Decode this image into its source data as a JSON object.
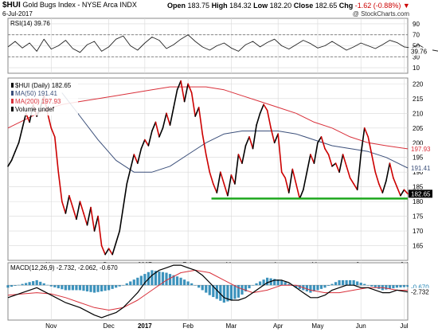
{
  "header": {
    "symbol": "$HUI",
    "name": "Gold Bugs Index - NYSE Arca INDX",
    "date": "6-Jul-2017",
    "watermark": "@ StockCharts.com",
    "quote": {
      "open_label": "Open",
      "open": "183.75",
      "high_label": "High",
      "high": "184.32",
      "low_label": "Low",
      "low": "182.20",
      "close_label": "Close",
      "close": "182.65",
      "chg_label": "Chg",
      "chg": "-1.62 (-0.88%)"
    }
  },
  "colors": {
    "price": "#000000",
    "price_down": "#cc0000",
    "ma50": "#3b4f7a",
    "ma200": "#d9303a",
    "support": "#1fa81f",
    "macd_line": "#000000",
    "signal_line": "#d9303a",
    "histogram": "#1a7fb0",
    "grid": "#d8d8d8"
  },
  "chart_data": [
    {
      "type": "line",
      "name": "rsi-panel",
      "legend": "RSI(14) 39.76",
      "ylim": [
        0,
        100
      ],
      "yticks": [
        10,
        30,
        50,
        70,
        90
      ],
      "reference_lines": [
        30,
        70
      ],
      "last_value_tag": "39.76",
      "series": [
        {
          "name": "RSI(14)",
          "x": [
            0,
            4,
            8,
            12,
            16,
            20,
            24,
            28,
            32,
            36,
            40,
            44,
            48,
            52,
            56,
            60,
            64,
            68,
            72,
            76,
            80,
            84,
            88,
            92,
            96,
            100,
            104,
            108,
            112,
            116,
            120,
            124,
            128,
            132,
            136,
            140,
            144,
            148,
            152,
            156,
            160,
            164,
            168,
            172,
            176,
            180,
            184,
            188,
            192,
            196,
            200,
            204,
            208,
            212,
            216,
            220,
            224,
            228,
            232,
            236,
            240
          ],
          "values": [
            48,
            58,
            46,
            55,
            40,
            62,
            44,
            50,
            60,
            45,
            38,
            52,
            58,
            40,
            48,
            62,
            68,
            50,
            42,
            55,
            66,
            60,
            45,
            52,
            62,
            70,
            58,
            48,
            42,
            50,
            55,
            46,
            40,
            52,
            58,
            48,
            56,
            62,
            50,
            44,
            52,
            60,
            54,
            46,
            50,
            58,
            50,
            42,
            48,
            55,
            50,
            45,
            52,
            60,
            56,
            48,
            46,
            52,
            44,
            42,
            39.76
          ]
        }
      ]
    },
    {
      "type": "line",
      "name": "price-panel",
      "legend": [
        "$HUI (Daily) 182.65",
        "MA(50) 191.41",
        "MA(200) 197.93",
        "Volume undef"
      ],
      "ylim": [
        160,
        222
      ],
      "yticks": [
        165,
        170,
        175,
        180,
        185,
        190,
        195,
        200,
        205,
        210,
        215,
        220
      ],
      "xticks": [
        {
          "x": 24,
          "label": "Nov"
        },
        {
          "x": 56,
          "label": "Dec"
        },
        {
          "x": 76,
          "label": "2017"
        },
        {
          "x": 100,
          "label": "Feb"
        },
        {
          "x": 124,
          "label": "Mar"
        },
        {
          "x": 150,
          "label": "Apr"
        },
        {
          "x": 172,
          "label": "May"
        },
        {
          "x": 196,
          "label": "Jun"
        },
        {
          "x": 220,
          "label": "Jul"
        }
      ],
      "last_value_tags": [
        "197.93",
        "191.41",
        "182.65"
      ],
      "support_level": 181,
      "support_x": [
        113,
        222
      ],
      "series": [
        {
          "name": "$HUI",
          "x": [
            0,
            2,
            4,
            6,
            8,
            10,
            12,
            14,
            16,
            18,
            20,
            22,
            24,
            26,
            28,
            30,
            32,
            34,
            36,
            38,
            40,
            42,
            44,
            46,
            48,
            50,
            52,
            54,
            56,
            58,
            60,
            62,
            64,
            66,
            68,
            70,
            72,
            74,
            76,
            78,
            80,
            82,
            84,
            86,
            88,
            90,
            92,
            94,
            96,
            98,
            100,
            102,
            104,
            106,
            108,
            110,
            112,
            114,
            116,
            118,
            120,
            122,
            124,
            126,
            128,
            130,
            132,
            134,
            136,
            138,
            140,
            142,
            144,
            146,
            148,
            150,
            152,
            154,
            156,
            158,
            160,
            162,
            164,
            166,
            168,
            170,
            172,
            174,
            176,
            178,
            180,
            182,
            184,
            186,
            188,
            190,
            192,
            194,
            196,
            198,
            200,
            202,
            204,
            206,
            208,
            210,
            212,
            214,
            216,
            218,
            220,
            222
          ],
          "values": [
            192,
            194,
            197,
            200,
            205,
            210,
            207,
            213,
            209,
            212,
            216,
            210,
            205,
            202,
            190,
            180,
            176,
            182,
            178,
            174,
            180,
            176,
            172,
            178,
            170,
            175,
            165,
            162,
            164,
            162,
            166,
            170,
            178,
            186,
            191,
            196,
            193,
            198,
            201,
            199,
            204,
            207,
            202,
            205,
            210,
            206,
            212,
            218,
            221,
            214,
            220,
            217,
            209,
            212,
            203,
            196,
            190,
            186,
            183,
            190,
            186,
            182,
            189,
            186,
            196,
            193,
            199,
            202,
            198,
            206,
            210,
            213,
            211,
            205,
            200,
            203,
            190,
            188,
            183,
            191,
            186,
            181,
            184,
            190,
            196,
            193,
            200,
            202,
            198,
            196,
            192,
            193,
            190,
            196,
            192,
            188,
            186,
            184,
            196,
            205,
            202,
            196,
            190,
            186,
            183,
            187,
            193,
            188,
            185,
            182,
            184,
            182.65
          ]
        },
        {
          "name": "MA(50)",
          "x": [
            30,
            40,
            50,
            60,
            70,
            80,
            90,
            100,
            110,
            120,
            130,
            140,
            150,
            160,
            170,
            180,
            190,
            200,
            210,
            222
          ],
          "values": [
            217,
            209,
            201,
            194,
            190,
            190,
            192,
            196,
            200,
            203,
            204,
            204,
            204,
            203,
            201,
            199,
            198,
            197,
            195,
            191.41
          ]
        },
        {
          "name": "MA(200)",
          "x": [
            0,
            10,
            20,
            30,
            40,
            50,
            60,
            70,
            80,
            90,
            100,
            110,
            120,
            130,
            140,
            150,
            160,
            170,
            180,
            190,
            200,
            210,
            222
          ],
          "values": [
            205,
            208,
            211,
            213,
            214,
            215,
            216,
            217,
            218,
            219,
            219,
            219,
            218,
            216,
            214,
            212,
            210,
            207,
            205,
            202,
            200,
            199,
            197.93
          ]
        }
      ]
    },
    {
      "type": "line",
      "name": "macd-panel",
      "legend": "MACD(12,26,9) -2.732, -2.062, -0.670",
      "last_value_tags": [
        "-0.670",
        "-2.732"
      ],
      "series": [
        {
          "name": "MACD",
          "x": [
            0,
            8,
            16,
            24,
            32,
            40,
            48,
            52,
            56,
            60,
            64,
            68,
            72,
            76,
            80,
            84,
            88,
            92,
            96,
            100,
            104,
            108,
            112,
            116,
            120,
            124,
            128,
            132,
            136,
            140,
            144,
            148,
            152,
            156,
            160,
            164,
            168,
            172,
            176,
            180,
            184,
            188,
            192,
            196,
            200,
            204,
            208,
            212,
            216,
            222
          ],
          "values": [
            -5,
            -3,
            -1,
            -4,
            -7,
            -9,
            -12,
            -13,
            -12,
            -11,
            -9,
            -6,
            -3,
            1,
            4,
            6,
            7,
            8,
            8,
            7,
            6,
            4,
            1,
            -2,
            -5,
            -6,
            -6,
            -5,
            -3,
            -1,
            1,
            2,
            2,
            1,
            -1,
            -3,
            -5,
            -5,
            -4,
            -2,
            -1,
            0,
            0,
            -1,
            -1,
            -2,
            -3,
            -3,
            -2,
            -2.732
          ]
        },
        {
          "name": "Signal",
          "x": [
            0,
            8,
            16,
            24,
            32,
            40,
            48,
            56,
            64,
            72,
            80,
            88,
            96,
            104,
            112,
            120,
            128,
            136,
            144,
            152,
            160,
            168,
            176,
            184,
            192,
            200,
            208,
            216,
            222
          ],
          "values": [
            -4,
            -3.5,
            -3,
            -3.5,
            -5,
            -7,
            -9,
            -10,
            -9,
            -6,
            -2,
            2,
            5,
            6,
            5,
            2,
            -1,
            -3,
            -2,
            0,
            0,
            -2,
            -3,
            -3,
            -2,
            -1,
            -1,
            -2,
            -2.062
          ]
        },
        {
          "name": "Histogram",
          "x": [
            0,
            8,
            16,
            24,
            32,
            40,
            48,
            56,
            64,
            72,
            80,
            88,
            96,
            104,
            112,
            120,
            128,
            136,
            144,
            152,
            160,
            168,
            176,
            184,
            192,
            200,
            208,
            216,
            222
          ],
          "values": [
            -1,
            0.5,
            2,
            -0.5,
            -2,
            -2,
            -3,
            -2,
            0,
            3,
            6,
            5,
            3,
            0,
            -4,
            -7,
            -5,
            0,
            3,
            2,
            -1,
            -3,
            -1,
            2,
            2,
            0,
            -2,
            -1,
            -0.67
          ]
        }
      ]
    }
  ]
}
